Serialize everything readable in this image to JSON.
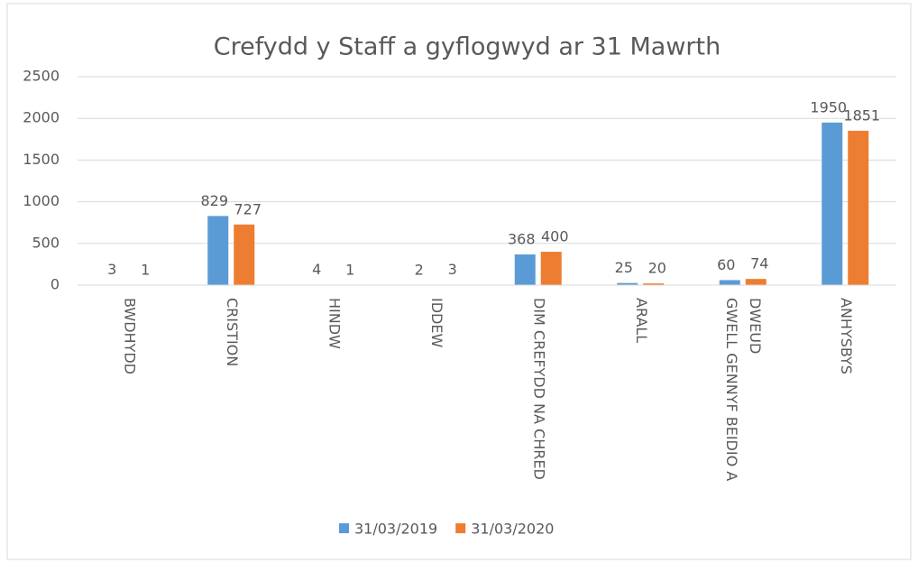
{
  "chart_data": {
    "type": "bar",
    "title": "Crefydd y Staff a gyflogwyd ar 31 Mawrth",
    "categories": [
      "BWDHYDD",
      "CRISTION",
      "HINDW",
      "IDDEW",
      "DIM CREFYDD NA CHRED",
      "ARALL",
      "GWELL GENNYF BEIDIO A DWEUD",
      "ANHYSBYS"
    ],
    "series": [
      {
        "name": "31/03/2019",
        "color": "#5b9bd5",
        "values": [
          3,
          829,
          4,
          2,
          368,
          25,
          60,
          1950
        ]
      },
      {
        "name": "31/03/2020",
        "color": "#ed7d31",
        "values": [
          1,
          727,
          1,
          3,
          400,
          20,
          74,
          1851
        ]
      }
    ],
    "ylim": [
      0,
      2500
    ],
    "yticks": [
      0,
      500,
      1000,
      1500,
      2000,
      2500
    ],
    "grid": true,
    "legend": "bottom"
  }
}
